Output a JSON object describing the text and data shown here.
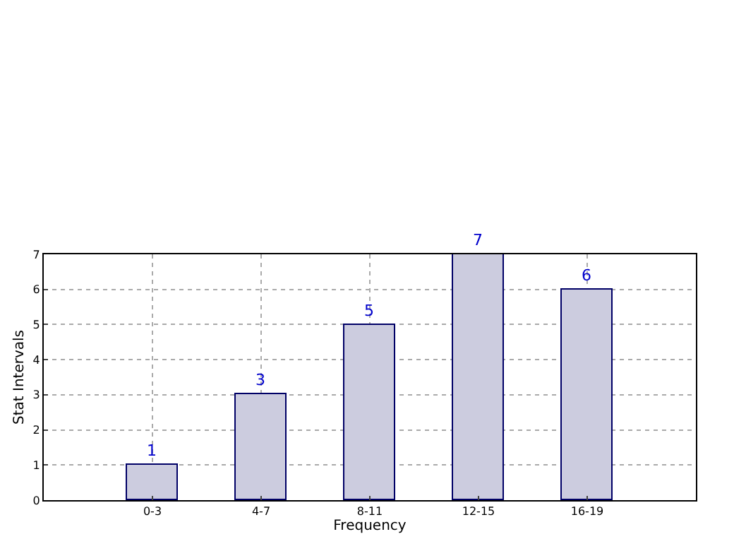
{
  "chart_data": {
    "type": "bar",
    "xlabel": "Frequency",
    "ylabel": "Stat Intervals",
    "categories": [
      "0-3",
      "4-7",
      "8-11",
      "12-15",
      "16-19"
    ],
    "values": [
      1,
      3,
      5,
      7,
      6
    ],
    "color": "#ccccdf",
    "ylim": [
      0,
      7
    ],
    "yticks": [
      0,
      1,
      2,
      3,
      4,
      5,
      6,
      7
    ],
    "grid": true,
    "data_labels": true
  }
}
